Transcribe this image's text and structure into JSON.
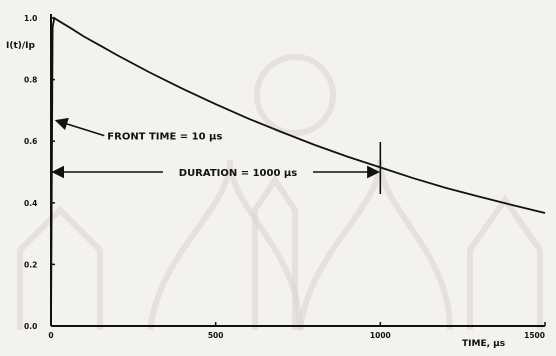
{
  "chart_data": {
    "type": "line",
    "title": "",
    "ylabel": "I(t)/Ip",
    "xlabel": "TIME, µs",
    "xlim": [
      0,
      1500
    ],
    "ylim": [
      0,
      1.0
    ],
    "x_ticks": [
      0,
      500,
      1000,
      1500
    ],
    "x_tick_labels": [
      "0",
      "500",
      "1000",
      "1500"
    ],
    "y_ticks": [
      0,
      0.2,
      0.4,
      0.6,
      0.8,
      1.0
    ],
    "y_tick_labels": [
      "0.0",
      "0.2",
      "0.4",
      "0.6",
      "0.8",
      "1.0"
    ],
    "grid": false,
    "series": [
      {
        "x": [
          0,
          5,
          10,
          20,
          40,
          60,
          100,
          150,
          200,
          300,
          400,
          500,
          600,
          700,
          800,
          900,
          1000,
          1100,
          1200,
          1300,
          1400,
          1500
        ],
        "y": [
          0,
          0.97,
          1.0,
          0.993,
          0.98,
          0.967,
          0.94,
          0.91,
          0.88,
          0.823,
          0.77,
          0.72,
          0.673,
          0.63,
          0.588,
          0.55,
          0.515,
          0.48,
          0.448,
          0.42,
          0.393,
          0.367
        ]
      }
    ],
    "annotations": [
      {
        "text": "FRONT TIME = 10 µs",
        "x": 10,
        "y": 0.67
      },
      {
        "text": "DURATION = 1000 µs",
        "x_start": 0,
        "x_end": 1000,
        "y": 0.5
      }
    ]
  }
}
